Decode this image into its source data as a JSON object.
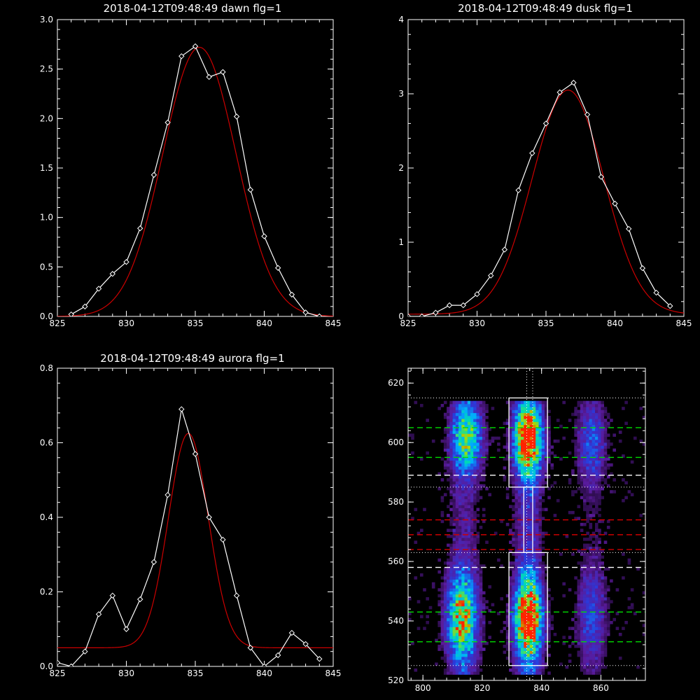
{
  "colors": {
    "background": "#000000",
    "axis": "#ffffff",
    "observed": "#ffffff",
    "fit": "#cc0000",
    "guide_green": "#00dd00",
    "guide_white": "#ffffff",
    "guide_red": "#cc0000"
  },
  "chart_data": [
    {
      "type": "line",
      "title": "2018-04-12T09:48:49 dawn flg=1",
      "xlim": [
        825,
        845
      ],
      "ylim": [
        0,
        3.0
      ],
      "xticks": [
        825,
        830,
        835,
        840,
        845
      ],
      "xtick_labels": [
        "825",
        "830",
        "835",
        "840",
        "845"
      ],
      "yticks": [
        0,
        0.5,
        1.0,
        1.5,
        2.0,
        2.5,
        3.0
      ],
      "ytick_labels": [
        "0.0",
        "0.5",
        "1.0",
        "1.5",
        "2.0",
        "2.5",
        "3.0"
      ],
      "series": [
        {
          "role": "observed",
          "markers": "diamond",
          "x": [
            826,
            827,
            828,
            829,
            830,
            831,
            832,
            833,
            834,
            835,
            836,
            837,
            838,
            839,
            840,
            841,
            842,
            843,
            844
          ],
          "y": [
            0.02,
            0.1,
            0.28,
            0.43,
            0.55,
            0.89,
            1.43,
            1.96,
            2.63,
            2.73,
            2.42,
            2.47,
            2.02,
            1.28,
            0.81,
            0.49,
            0.22,
            0.04,
            0.0
          ]
        },
        {
          "role": "fit",
          "gaussian": {
            "amplitude": 2.72,
            "center": 835.3,
            "sigma": 2.65,
            "offset": 0.0
          }
        }
      ]
    },
    {
      "type": "line",
      "title": "2018-04-12T09:48:49 dusk flg=1",
      "xlim": [
        825,
        845
      ],
      "ylim": [
        0,
        4
      ],
      "xticks": [
        825,
        830,
        835,
        840,
        845
      ],
      "xtick_labels": [
        "825",
        "830",
        "835",
        "840",
        "845"
      ],
      "yticks": [
        0,
        1,
        2,
        3,
        4
      ],
      "ytick_labels": [
        "0",
        "1",
        "2",
        "3",
        "4"
      ],
      "series": [
        {
          "role": "observed",
          "markers": "diamond",
          "x": [
            825,
            826,
            827,
            828,
            829,
            830,
            831,
            832,
            833,
            834,
            835,
            836,
            837,
            838,
            839,
            840,
            841,
            842,
            843,
            844
          ],
          "y": [
            0.0,
            0.0,
            0.05,
            0.15,
            0.15,
            0.3,
            0.55,
            0.9,
            1.7,
            2.2,
            2.6,
            3.02,
            3.15,
            2.72,
            1.88,
            1.52,
            1.18,
            0.65,
            0.32,
            0.14
          ]
        },
        {
          "role": "fit",
          "gaussian": {
            "amplitude": 3.02,
            "center": 836.6,
            "sigma": 2.6,
            "offset": 0.03
          }
        }
      ]
    },
    {
      "type": "line",
      "title": "2018-04-12T09:48:49 aurora flg=1",
      "xlim": [
        825,
        845
      ],
      "ylim": [
        0,
        0.8
      ],
      "xticks": [
        825,
        830,
        835,
        840,
        845
      ],
      "xtick_labels": [
        "825",
        "830",
        "835",
        "840",
        "845"
      ],
      "yticks": [
        0,
        0.2,
        0.4,
        0.6,
        0.8
      ],
      "ytick_labels": [
        "0.0",
        "0.2",
        "0.4",
        "0.6",
        "0.8"
      ],
      "series": [
        {
          "role": "observed",
          "markers": "diamond",
          "x": [
            825,
            826,
            827,
            828,
            829,
            830,
            831,
            832,
            833,
            834,
            835,
            836,
            837,
            838,
            839,
            840,
            841,
            842,
            843,
            844
          ],
          "y": [
            0.01,
            0.0,
            0.04,
            0.14,
            0.19,
            0.1,
            0.18,
            0.28,
            0.46,
            0.69,
            0.57,
            0.4,
            0.34,
            0.19,
            0.05,
            0.0,
            0.03,
            0.09,
            0.06,
            0.02
          ]
        },
        {
          "role": "fit",
          "gaussian": {
            "amplitude": 0.575,
            "center": 834.5,
            "sigma": 1.45,
            "offset": 0.05
          }
        }
      ]
    },
    {
      "type": "heatmap",
      "xlim": [
        795,
        875
      ],
      "ylim": [
        520,
        625
      ],
      "xticks": [
        800,
        820,
        840,
        860
      ],
      "xtick_labels": [
        "800",
        "820",
        "840",
        "860"
      ],
      "yticks": [
        520,
        540,
        560,
        580,
        600,
        620
      ],
      "ytick_labels": [
        "520",
        "540",
        "560",
        "580",
        "600",
        "620"
      ],
      "colormap": [
        "#000000",
        "#5a1a9a",
        "#2a3adc",
        "#00aaff",
        "#00ddb0",
        "#aadd00",
        "#ff2200"
      ],
      "emission_bands": [
        {
          "x_center": 815,
          "x_width": 3.5,
          "y_center": 602,
          "y_width": 8,
          "peak": 0.62
        },
        {
          "x_center": 813,
          "x_width": 3.5,
          "y_center": 541,
          "y_width": 10,
          "peak": 0.75
        },
        {
          "x_center": 835.5,
          "x_width": 3.2,
          "y_center": 601,
          "y_width": 8,
          "peak": 1.0
        },
        {
          "x_center": 835.5,
          "x_width": 3.2,
          "y_center": 541,
          "y_width": 9,
          "peak": 1.0
        },
        {
          "x_center": 857,
          "x_width": 3.5,
          "y_center": 600,
          "y_width": 10,
          "peak": 0.28
        },
        {
          "x_center": 857,
          "x_width": 3.5,
          "y_center": 542,
          "y_width": 12,
          "peak": 0.25
        }
      ],
      "boxes": [
        {
          "x": [
            829,
            842
          ],
          "y": [
            585,
            615
          ]
        },
        {
          "x": [
            829,
            842
          ],
          "y": [
            525,
            563
          ]
        },
        {
          "x": [
            834,
            837
          ],
          "y": [
            563,
            585
          ]
        }
      ],
      "dotted_h": [
        615,
        585,
        563,
        525
      ],
      "dotted_v": [
        835,
        837
      ],
      "dashed_green": [
        605,
        595,
        543,
        533
      ],
      "dashed_white": [
        589,
        558
      ],
      "dashed_red": [
        574,
        569,
        564
      ]
    }
  ]
}
